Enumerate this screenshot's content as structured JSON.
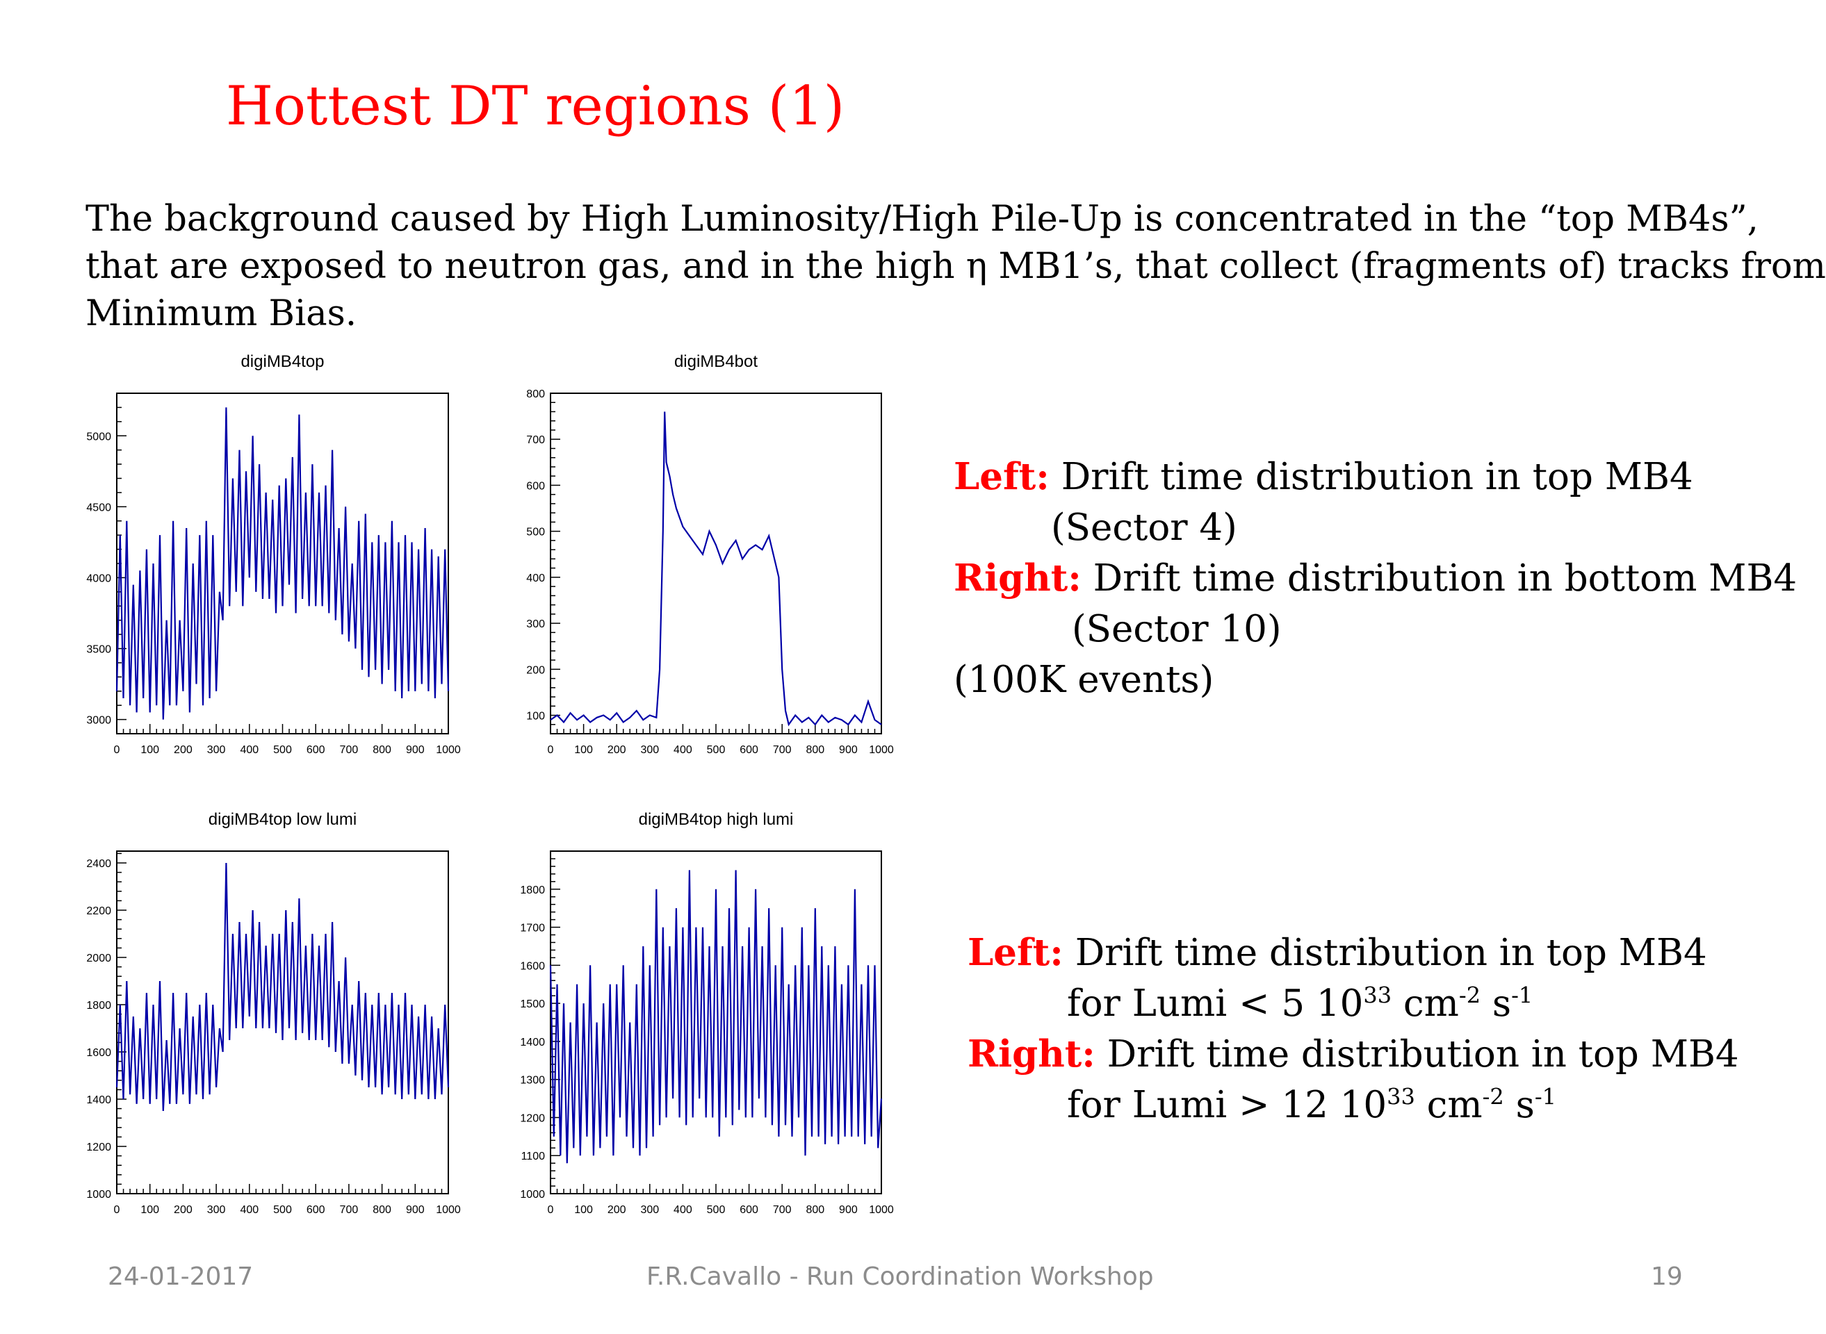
{
  "slide": {
    "title": "Hottest DT regions (1)",
    "intro_lines": [
      "The background caused by High Luminosity/High Pile-Up is concentrated in the “top MB4s”,",
      "that are exposed to neutron gas, and in the high η MB1’s, that collect (fragments of) tracks from",
      "Minimum Bias."
    ],
    "note1": {
      "left_label": "Left:",
      "left_text": " Drift time distribution in top MB4",
      "left_cont": "(Sector 4)",
      "right_label": "Right:",
      "right_text": " Drift time distribution in bottom MB4",
      "right_cont": "(Sector 10)",
      "events": "(100K events)"
    },
    "note2": {
      "left_label": "Left:",
      "left_text": " Drift time distribution in top MB4",
      "left_cont_a": "for Lumi < 5 10",
      "left_exp1": "33",
      "left_cont_b": "  cm",
      "left_exp2": "-2",
      "left_cont_c": "  s",
      "left_exp3": "-1",
      "right_label": "Right:",
      "right_text": " Drift time distribution in top MB4",
      "right_cont_a": "for Lumi > 12 10",
      "right_exp1": "33",
      "right_cont_b": "  cm",
      "right_exp2": "-2",
      "right_cont_c": "  s",
      "right_exp3": "-1"
    },
    "footer": {
      "date": "24-01-2017",
      "center": "F.R.Cavallo - Run Coordination Workshop",
      "page": "19"
    }
  },
  "chart_data": [
    {
      "type": "line",
      "title": "digiMB4top",
      "xlim": [
        0,
        1000
      ],
      "ylim": [
        2900,
        5300
      ],
      "xticks": [
        0,
        100,
        200,
        300,
        400,
        500,
        600,
        700,
        800,
        900,
        1000
      ],
      "yticks": [
        3000,
        3500,
        4000,
        4500,
        5000
      ],
      "color": "#0000a8",
      "x": [
        0,
        10,
        20,
        30,
        40,
        50,
        60,
        70,
        80,
        90,
        100,
        110,
        120,
        130,
        140,
        150,
        160,
        170,
        180,
        190,
        200,
        210,
        220,
        230,
        240,
        250,
        260,
        270,
        280,
        290,
        300,
        310,
        320,
        330,
        340,
        350,
        360,
        370,
        380,
        390,
        400,
        410,
        420,
        430,
        440,
        450,
        460,
        470,
        480,
        490,
        500,
        510,
        520,
        530,
        540,
        550,
        560,
        570,
        580,
        590,
        600,
        610,
        620,
        630,
        640,
        650,
        660,
        670,
        680,
        690,
        700,
        710,
        720,
        730,
        740,
        750,
        760,
        770,
        780,
        790,
        800,
        810,
        820,
        830,
        840,
        850,
        860,
        870,
        880,
        890,
        900,
        910,
        920,
        930,
        940,
        950,
        960,
        970,
        980,
        990,
        1000
      ],
      "values": [
        3200,
        4300,
        3150,
        4400,
        3100,
        3950,
        3050,
        4050,
        3150,
        4200,
        3050,
        4100,
        3100,
        4300,
        3000,
        3700,
        3100,
        4400,
        3100,
        3700,
        3200,
        4350,
        3050,
        4100,
        3250,
        4300,
        3100,
        4400,
        3150,
        4300,
        3200,
        3900,
        3700,
        5200,
        3800,
        4700,
        3900,
        4900,
        3800,
        4750,
        4000,
        5000,
        3900,
        4800,
        3850,
        4600,
        3850,
        4550,
        3750,
        4650,
        3800,
        4700,
        3950,
        4850,
        3750,
        5150,
        3850,
        4600,
        3800,
        4800,
        3800,
        4600,
        3800,
        4650,
        3750,
        4900,
        3700,
        4350,
        3600,
        4500,
        3550,
        4100,
        3500,
        4400,
        3350,
        4450,
        3300,
        4250,
        3350,
        4300,
        3250,
        4250,
        3350,
        4400,
        3200,
        4250,
        3150,
        4300,
        3200,
        4250,
        3200,
        4200,
        3250,
        4350,
        3200,
        4200,
        3150,
        4150,
        3250,
        4200,
        3200
      ]
    },
    {
      "type": "line",
      "title": "digiMB4bot",
      "xlim": [
        0,
        1000
      ],
      "ylim": [
        60,
        800
      ],
      "xticks": [
        0,
        100,
        200,
        300,
        400,
        500,
        600,
        700,
        800,
        900,
        1000
      ],
      "yticks": [
        100,
        200,
        300,
        400,
        500,
        600,
        700,
        800
      ],
      "color": "#0000a8",
      "x": [
        0,
        20,
        40,
        60,
        80,
        100,
        120,
        140,
        160,
        180,
        200,
        220,
        240,
        260,
        280,
        300,
        320,
        330,
        340,
        345,
        350,
        360,
        370,
        380,
        390,
        400,
        420,
        440,
        460,
        480,
        500,
        520,
        540,
        560,
        580,
        600,
        620,
        640,
        660,
        680,
        690,
        700,
        710,
        720,
        740,
        760,
        780,
        800,
        820,
        840,
        860,
        880,
        900,
        920,
        940,
        960,
        980,
        1000
      ],
      "values": [
        90,
        100,
        85,
        105,
        90,
        100,
        85,
        95,
        100,
        90,
        105,
        85,
        95,
        110,
        90,
        100,
        95,
        200,
        500,
        760,
        650,
        620,
        580,
        550,
        530,
        510,
        490,
        470,
        450,
        500,
        470,
        430,
        460,
        480,
        440,
        460,
        470,
        460,
        490,
        430,
        400,
        200,
        110,
        80,
        100,
        85,
        95,
        80,
        100,
        85,
        95,
        90,
        80,
        100,
        85,
        130,
        90,
        80
      ]
    },
    {
      "type": "line",
      "title": "digiMB4top low lumi",
      "xlim": [
        0,
        1000
      ],
      "ylim": [
        1000,
        2450
      ],
      "xticks": [
        0,
        100,
        200,
        300,
        400,
        500,
        600,
        700,
        800,
        900,
        1000
      ],
      "yticks": [
        1000,
        1200,
        1400,
        1600,
        1800,
        2000,
        2200,
        2400
      ],
      "color": "#0000a8",
      "x": [
        0,
        10,
        20,
        30,
        40,
        50,
        60,
        70,
        80,
        90,
        100,
        110,
        120,
        130,
        140,
        150,
        160,
        170,
        180,
        190,
        200,
        210,
        220,
        230,
        240,
        250,
        260,
        270,
        280,
        290,
        300,
        310,
        320,
        330,
        340,
        350,
        360,
        370,
        380,
        390,
        400,
        410,
        420,
        430,
        440,
        450,
        460,
        470,
        480,
        490,
        500,
        510,
        520,
        530,
        540,
        550,
        560,
        570,
        580,
        590,
        600,
        610,
        620,
        630,
        640,
        650,
        660,
        670,
        680,
        690,
        700,
        710,
        720,
        730,
        740,
        750,
        760,
        770,
        780,
        790,
        800,
        810,
        820,
        830,
        840,
        850,
        860,
        870,
        880,
        890,
        900,
        910,
        920,
        930,
        940,
        950,
        960,
        970,
        980,
        990,
        1000
      ],
      "values": [
        1450,
        1800,
        1400,
        1900,
        1420,
        1750,
        1380,
        1700,
        1400,
        1850,
        1380,
        1800,
        1400,
        1900,
        1350,
        1650,
        1380,
        1850,
        1380,
        1700,
        1420,
        1850,
        1380,
        1750,
        1420,
        1800,
        1400,
        1850,
        1420,
        1800,
        1450,
        1700,
        1600,
        2400,
        1650,
        2100,
        1700,
        2150,
        1700,
        2100,
        1750,
        2200,
        1700,
        2150,
        1700,
        2050,
        1700,
        2100,
        1680,
        2100,
        1650,
        2200,
        1700,
        2150,
        1650,
        2250,
        1680,
        2050,
        1650,
        2100,
        1650,
        2050,
        1650,
        2100,
        1620,
        2150,
        1600,
        1900,
        1550,
        2000,
        1550,
        1800,
        1500,
        1900,
        1480,
        1850,
        1450,
        1800,
        1450,
        1850,
        1420,
        1800,
        1450,
        1850,
        1420,
        1800,
        1400,
        1850,
        1420,
        1800,
        1400,
        1750,
        1420,
        1800,
        1400,
        1750,
        1400,
        1700,
        1420,
        1800,
        1450
      ]
    },
    {
      "type": "line",
      "title": "digiMB4top high lumi",
      "xlim": [
        0,
        1000
      ],
      "ylim": [
        1000,
        1900
      ],
      "xticks": [
        0,
        100,
        200,
        300,
        400,
        500,
        600,
        700,
        800,
        900,
        1000
      ],
      "yticks": [
        1000,
        1100,
        1200,
        1300,
        1400,
        1500,
        1600,
        1700,
        1800
      ],
      "color": "#0000a8",
      "x": [
        0,
        10,
        20,
        30,
        40,
        50,
        60,
        70,
        80,
        90,
        100,
        110,
        120,
        130,
        140,
        150,
        160,
        170,
        180,
        190,
        200,
        210,
        220,
        230,
        240,
        250,
        260,
        270,
        280,
        290,
        300,
        310,
        320,
        330,
        340,
        350,
        360,
        370,
        380,
        390,
        400,
        410,
        420,
        430,
        440,
        450,
        460,
        470,
        480,
        490,
        500,
        510,
        520,
        530,
        540,
        550,
        560,
        570,
        580,
        590,
        600,
        610,
        620,
        630,
        640,
        650,
        660,
        670,
        680,
        690,
        700,
        710,
        720,
        730,
        740,
        750,
        760,
        770,
        780,
        790,
        800,
        810,
        820,
        830,
        840,
        850,
        860,
        870,
        880,
        890,
        900,
        910,
        920,
        930,
        940,
        950,
        960,
        970,
        980,
        990,
        1000
      ],
      "values": [
        1600,
        1150,
        1550,
        1100,
        1500,
        1080,
        1450,
        1120,
        1550,
        1100,
        1500,
        1150,
        1600,
        1100,
        1450,
        1120,
        1500,
        1150,
        1550,
        1100,
        1550,
        1200,
        1600,
        1150,
        1450,
        1120,
        1550,
        1100,
        1650,
        1120,
        1600,
        1150,
        1800,
        1180,
        1700,
        1200,
        1650,
        1250,
        1750,
        1200,
        1700,
        1180,
        1850,
        1200,
        1700,
        1250,
        1700,
        1200,
        1650,
        1200,
        1800,
        1150,
        1650,
        1200,
        1750,
        1180,
        1850,
        1220,
        1650,
        1200,
        1700,
        1200,
        1800,
        1250,
        1650,
        1200,
        1750,
        1180,
        1600,
        1150,
        1700,
        1180,
        1550,
        1150,
        1600,
        1200,
        1700,
        1100,
        1600,
        1150,
        1750,
        1150,
        1650,
        1130,
        1600,
        1150,
        1650,
        1130,
        1550,
        1150,
        1600,
        1150,
        1800,
        1150,
        1550,
        1130,
        1600,
        1150,
        1600,
        1120,
        1250
      ]
    }
  ]
}
